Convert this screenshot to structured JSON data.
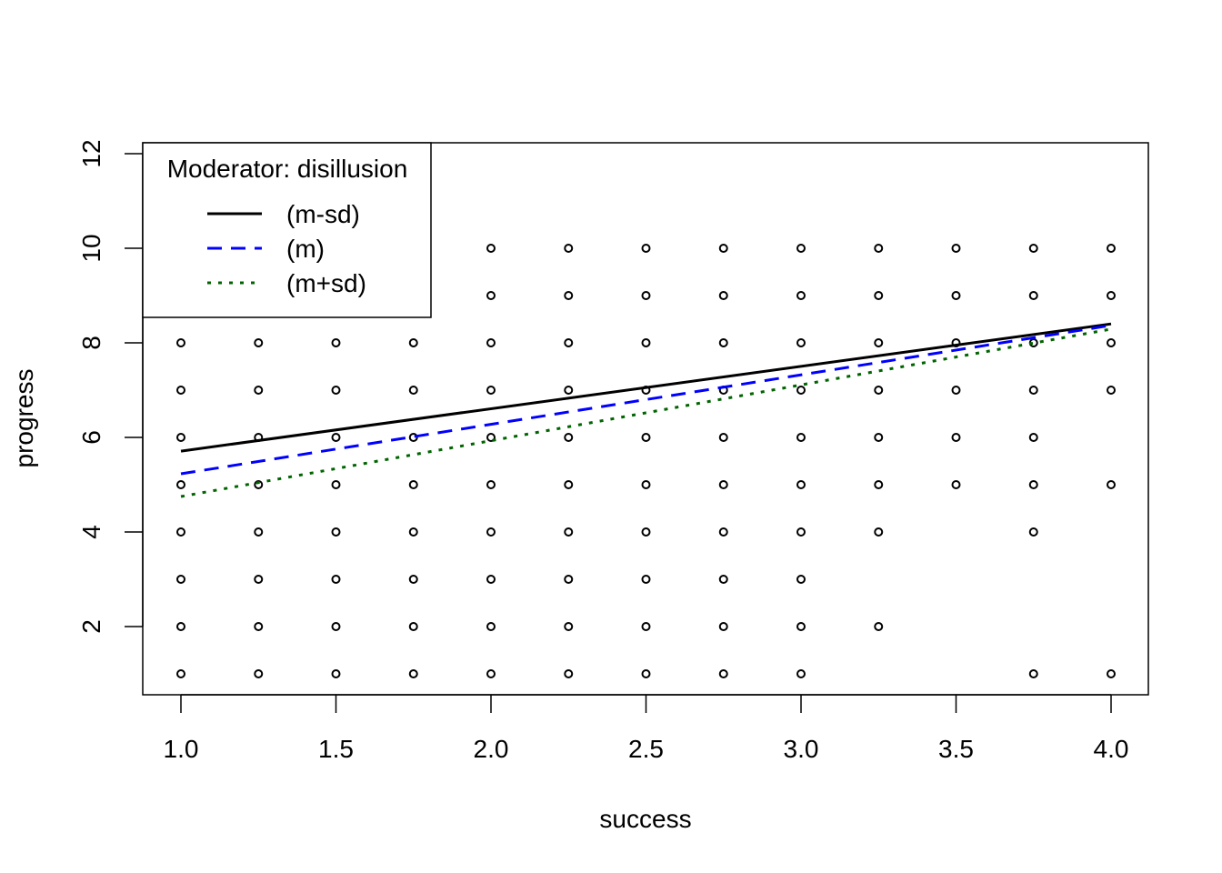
{
  "chart_data": {
    "type": "scatter",
    "title": "",
    "xlabel": "success",
    "ylabel": "progress",
    "xlim": [
      0.88,
      4.12
    ],
    "ylim": [
      0.56,
      12.2
    ],
    "xticks": [
      "1.0",
      "1.5",
      "2.0",
      "2.5",
      "3.0",
      "3.5",
      "4.0"
    ],
    "xtick_values": [
      1.0,
      1.5,
      2.0,
      2.5,
      3.0,
      3.5,
      4.0
    ],
    "yticks": [
      "2",
      "4",
      "6",
      "8",
      "10",
      "12"
    ],
    "ytick_values": [
      2,
      4,
      6,
      8,
      10,
      12
    ],
    "grid": false,
    "points": [
      {
        "x": 1.0,
        "ys": [
          1,
          2,
          3,
          4,
          5,
          6,
          7,
          8
        ]
      },
      {
        "x": 1.25,
        "ys": [
          1,
          2,
          3,
          4,
          5,
          6,
          7,
          8
        ]
      },
      {
        "x": 1.5,
        "ys": [
          1,
          2,
          3,
          4,
          5,
          6,
          7,
          8
        ]
      },
      {
        "x": 1.75,
        "ys": [
          1,
          2,
          3,
          4,
          5,
          6,
          7,
          8
        ]
      },
      {
        "x": 2.0,
        "ys": [
          1,
          2,
          3,
          4,
          5,
          6,
          7,
          8,
          9,
          10
        ]
      },
      {
        "x": 2.25,
        "ys": [
          1,
          2,
          3,
          4,
          5,
          6,
          7,
          8,
          9,
          10
        ]
      },
      {
        "x": 2.5,
        "ys": [
          1,
          2,
          3,
          4,
          5,
          6,
          7,
          8,
          9,
          10
        ]
      },
      {
        "x": 2.75,
        "ys": [
          1,
          2,
          3,
          4,
          5,
          6,
          7,
          8,
          9,
          10
        ]
      },
      {
        "x": 3.0,
        "ys": [
          1,
          2,
          3,
          4,
          5,
          6,
          7,
          8,
          9,
          10
        ]
      },
      {
        "x": 3.25,
        "ys": [
          2,
          4,
          5,
          6,
          7,
          8,
          9,
          10
        ]
      },
      {
        "x": 3.5,
        "ys": [
          5,
          6,
          7,
          8,
          9,
          10
        ]
      },
      {
        "x": 3.75,
        "ys": [
          1,
          4,
          5,
          6,
          7,
          8,
          9,
          10
        ]
      },
      {
        "x": 4.0,
        "ys": [
          1,
          5,
          7,
          8,
          9,
          10
        ]
      }
    ],
    "series": [
      {
        "name": "(m-sd)",
        "color": "#000000",
        "dash": "solid",
        "x": [
          1.0,
          4.0
        ],
        "y": [
          5.71,
          8.4
        ]
      },
      {
        "name": "(m)",
        "color": "#0000ff",
        "dash": "dashed",
        "x": [
          1.0,
          4.0
        ],
        "y": [
          5.23,
          8.37
        ]
      },
      {
        "name": "(m+sd)",
        "color": "#006400",
        "dash": "dotted",
        "x": [
          1.0,
          4.0
        ],
        "y": [
          4.75,
          8.29
        ]
      }
    ],
    "legend": {
      "title": "Moderator: disillusion",
      "placement": "top-left"
    }
  }
}
